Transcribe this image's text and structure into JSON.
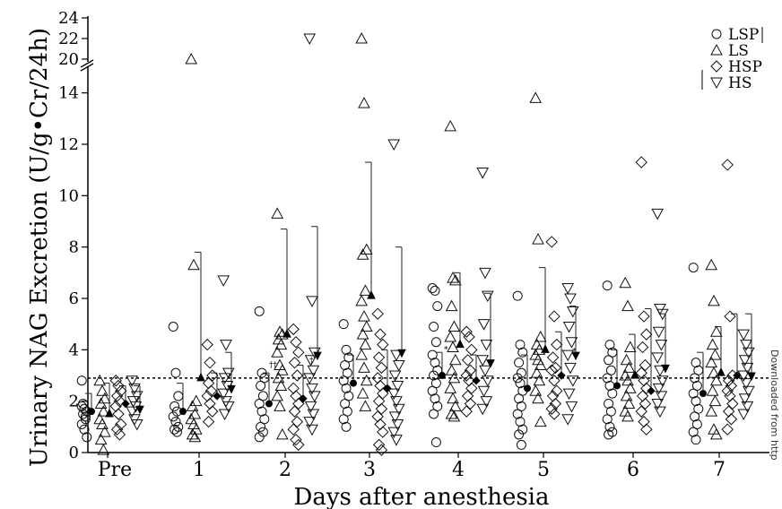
{
  "side_watermark": "Downloaded from http",
  "chart_data": {
    "type": "scatter",
    "title": "",
    "xlabel": "Days after anesthesia",
    "ylabel": "Urinary NAG Excretion (U/g•Cr/24h)",
    "categories": [
      "Pre",
      "1",
      "2",
      "3",
      "4",
      "5",
      "6",
      "7"
    ],
    "y_ticks_lower": [
      0,
      2,
      4,
      6,
      8,
      10,
      12,
      14
    ],
    "y_ticks_upper": [
      20,
      22,
      24
    ],
    "ylim_lower": [
      0,
      15
    ],
    "ylim_upper": [
      20,
      24
    ],
    "axis_break": "between 15 and 20",
    "reference_line": 2.9,
    "legend": {
      "position": "top-right",
      "entries": [
        {
          "label": "LSP",
          "marker": "circle"
        },
        {
          "label": "LS",
          "marker": "triangle-up"
        },
        {
          "label": "HSP",
          "marker": "diamond"
        },
        {
          "label": "HS",
          "marker": "triangle-down"
        }
      ]
    },
    "annotations": [
      {
        "text": "††",
        "day": "2"
      },
      {
        "text": "†",
        "day": "2"
      },
      {
        "text": "*",
        "day": "4"
      },
      {
        "text": "*",
        "day": "5"
      }
    ],
    "series": [
      {
        "name": "LSP",
        "marker": "circle",
        "points": [
          [
            1.8,
            1.7,
            1.6,
            1.5,
            1.3,
            1.1,
            0.9,
            0.6,
            1.9,
            1.4,
            2.8
          ],
          [
            4.9,
            3.1,
            2.2,
            1.8,
            1.6,
            1.4,
            1.2,
            1.0,
            0.9,
            0.8
          ],
          [
            5.5,
            3.1,
            2.9,
            2.6,
            2.2,
            1.9,
            1.6,
            1.3,
            1.0,
            0.8,
            0.6
          ],
          [
            5.0,
            4.0,
            3.7,
            3.4,
            3.1,
            2.8,
            2.5,
            2.2,
            1.9,
            1.6,
            1.3,
            1.0
          ],
          [
            6.4,
            6.3,
            5.7,
            4.9,
            4.3,
            3.8,
            3.5,
            3.2,
            3.0,
            2.7,
            2.4,
            2.1,
            1.8,
            1.5,
            0.4
          ],
          [
            6.1,
            4.2,
            3.9,
            3.5,
            3.1,
            2.9,
            2.7,
            2.4,
            2.1,
            1.8,
            1.5,
            1.2,
            0.9,
            0.7,
            0.3
          ],
          [
            6.5,
            4.2,
            3.9,
            3.6,
            3.2,
            2.9,
            2.6,
            2.3,
            1.9,
            1.6,
            1.3,
            1.0,
            0.8,
            0.7
          ],
          [
            7.2,
            3.5,
            3.2,
            2.9,
            2.6,
            2.3,
            2.0,
            1.7,
            1.4,
            1.1,
            0.8,
            0.5
          ]
        ],
        "means": [
          1.6,
          1.6,
          1.9,
          2.7,
          3.0,
          2.5,
          2.6,
          2.3
        ],
        "sd_upper": [
          2.3,
          2.7,
          3.1,
          3.8,
          3.9,
          3.8,
          4.0,
          3.9
        ]
      },
      {
        "name": "LS",
        "marker": "triangle-up",
        "points": [
          [
            2.8,
            2.4,
            2.1,
            1.9,
            1.6,
            1.3,
            1.1,
            0.8,
            0.5,
            0.1
          ],
          [
            20.0,
            7.3,
            2.0,
            1.8,
            1.5,
            1.3,
            1.1,
            0.9,
            0.7,
            0.6
          ],
          [
            9.3,
            4.7,
            4.6,
            4.4,
            4.2,
            3.9,
            3.4,
            3.2,
            2.9,
            2.6,
            2.2,
            1.8,
            0.7
          ],
          [
            22.0,
            13.6,
            7.9,
            7.7,
            6.3,
            5.9,
            5.3,
            4.9,
            4.6,
            4.2,
            3.8,
            3.3,
            2.8,
            2.3,
            1.8
          ],
          [
            12.7,
            6.8,
            6.7,
            5.7,
            4.9,
            4.5,
            4.1,
            3.6,
            3.2,
            2.9,
            2.5,
            2.1,
            1.8,
            1.5,
            1.4
          ],
          [
            13.8,
            8.3,
            4.5,
            4.2,
            4.0,
            3.8,
            3.6,
            3.4,
            3.1,
            2.8,
            2.4,
            2.1,
            1.2
          ],
          [
            6.6,
            5.7,
            4.1,
            3.6,
            3.3,
            3.0,
            2.8,
            2.5,
            2.2,
            1.9,
            1.6,
            1.4
          ],
          [
            7.3,
            5.9,
            4.7,
            4.2,
            3.8,
            3.5,
            3.1,
            2.8,
            2.4,
            2.0,
            1.6,
            0.9,
            0.7
          ]
        ],
        "means": [
          1.5,
          2.9,
          4.6,
          6.1,
          4.2,
          4.0,
          3.0,
          3.1
        ],
        "sd_upper": [
          2.7,
          7.8,
          8.7,
          11.3,
          7.0,
          7.2,
          4.6,
          4.9
        ]
      },
      {
        "name": "HSP",
        "marker": "diamond",
        "points": [
          [
            2.8,
            2.6,
            2.4,
            2.2,
            2.0,
            1.8,
            1.5,
            1.1,
            0.9,
            0.7
          ],
          [
            4.2,
            3.5,
            3.0,
            2.7,
            2.4,
            2.2,
            1.9,
            1.6,
            1.2
          ],
          [
            4.8,
            4.3,
            3.9,
            3.5,
            3.0,
            2.5,
            2.2,
            1.9,
            1.6,
            1.2,
            0.9,
            0.5,
            0.3
          ],
          [
            5.4,
            4.6,
            4.2,
            3.7,
            3.3,
            2.9,
            2.6,
            2.3,
            2.0,
            1.7,
            1.4,
            1.1,
            0.8,
            0.3,
            0.1
          ],
          [
            4.7,
            4.5,
            4.0,
            3.6,
            3.2,
            3.0,
            2.8,
            2.5,
            2.2,
            1.9,
            1.6
          ],
          [
            8.2,
            5.3,
            4.2,
            3.7,
            3.3,
            3.2,
            2.8,
            2.4,
            2.2,
            1.9,
            1.7,
            1.5
          ],
          [
            11.3,
            5.3,
            4.6,
            4.1,
            3.4,
            3.1,
            2.8,
            2.5,
            2.2,
            1.9,
            1.6,
            1.2,
            0.9
          ],
          [
            11.2,
            5.3,
            3.0,
            2.8,
            2.6,
            2.4,
            2.2,
            1.9,
            1.6,
            1.3,
            0.9
          ]
        ],
        "means": [
          1.9,
          2.2,
          2.1,
          2.5,
          2.8,
          3.0,
          2.4,
          3.0
        ],
        "sd_upper": [
          2.6,
          3.1,
          3.4,
          4.0,
          3.8,
          4.7,
          5.6,
          5.4
        ]
      },
      {
        "name": "HS",
        "marker": "triangle-down",
        "points": [
          [
            2.8,
            2.5,
            2.2,
            2.0,
            1.8,
            1.6,
            1.3,
            1.1
          ],
          [
            6.7,
            4.2,
            3.1,
            2.9,
            2.6,
            2.3,
            2.0,
            1.8,
            1.5
          ],
          [
            22.0,
            5.9,
            3.9,
            3.6,
            3.2,
            2.9,
            2.5,
            2.2,
            1.8,
            1.5,
            1.2,
            0.9
          ],
          [
            12.0,
            3.8,
            3.4,
            3.0,
            2.6,
            2.3,
            2.0,
            1.7,
            1.4,
            1.1,
            0.8,
            0.5
          ],
          [
            10.9,
            7.0,
            6.1,
            5.0,
            4.2,
            3.6,
            3.2,
            2.8,
            2.4,
            2.0,
            1.7
          ],
          [
            6.4,
            6.0,
            5.5,
            4.9,
            4.3,
            3.8,
            3.3,
            2.8,
            2.3,
            1.8,
            1.3
          ],
          [
            9.3,
            5.6,
            5.4,
            4.7,
            4.2,
            3.7,
            3.2,
            2.8,
            2.5,
            2.2,
            1.9,
            1.6
          ],
          [
            4.6,
            4.2,
            3.9,
            3.6,
            3.3,
            3.0,
            2.7,
            2.4,
            2.1,
            1.8,
            1.5
          ]
        ],
        "means": [
          1.7,
          2.5,
          3.8,
          3.9,
          3.5,
          3.8,
          3.3,
          3.0
        ],
        "sd_upper": [
          2.6,
          3.9,
          8.8,
          8.0,
          6.2,
          5.7,
          5.4,
          5.4
        ]
      }
    ]
  }
}
